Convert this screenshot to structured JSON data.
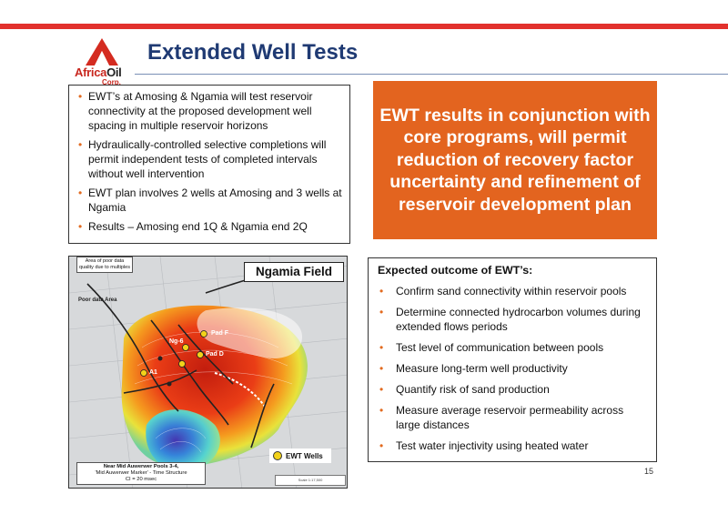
{
  "header": {
    "title": "Extended Well Tests",
    "logo": {
      "text_part1": "Africa",
      "text_part2": "Oil",
      "corp": "Corp."
    }
  },
  "top_bullets": [
    "EWT’s at Amosing & Ngamia will test reservoir connectivity at the proposed development well spacing in multiple reservoir horizons",
    "Hydraulically-controlled selective completions will permit independent tests of completed intervals without well intervention",
    "EWT plan involves 2 wells at Amosing and 3 wells at Ngamia",
    "Results – Amosing end 1Q & Ngamia end 2Q"
  ],
  "highlight": "EWT results in conjunction with core programs, will permit reduction of recovery factor uncertainty and refinement of reservoir development plan",
  "map": {
    "title": "Ngamia Field",
    "note": "Area of poor data quality due to multiples",
    "poor_area": "Poor data Area",
    "pads": [
      "Pad F",
      "Ng-6",
      "Pad D",
      "A1"
    ],
    "legend": "EWT Wells",
    "caption_title": "Near Mid Auwerwer Pools 3-4,",
    "caption_line2": "'Mid Auwerwer Marker' - Time Structure",
    "caption_line3": "CI = 20 msec",
    "scale": "Scale 1:17,500"
  },
  "outcome": {
    "heading": "Expected outcome of EWT’s:",
    "items": [
      "Confirm sand connectivity within reservoir pools",
      "Determine connected hydrocarbon volumes during extended flows periods",
      "Test level of communication between pools",
      "Measure long-term well productivity",
      "Quantify risk of sand production",
      "Measure average reservoir permeability across large distances",
      "Test water injectivity using heated water"
    ]
  },
  "page_number": "15",
  "colors": {
    "accent_red": "#e2312d",
    "title_blue": "#1f3a73",
    "orange": "#e3641f",
    "bullet": "#e26a1f"
  }
}
